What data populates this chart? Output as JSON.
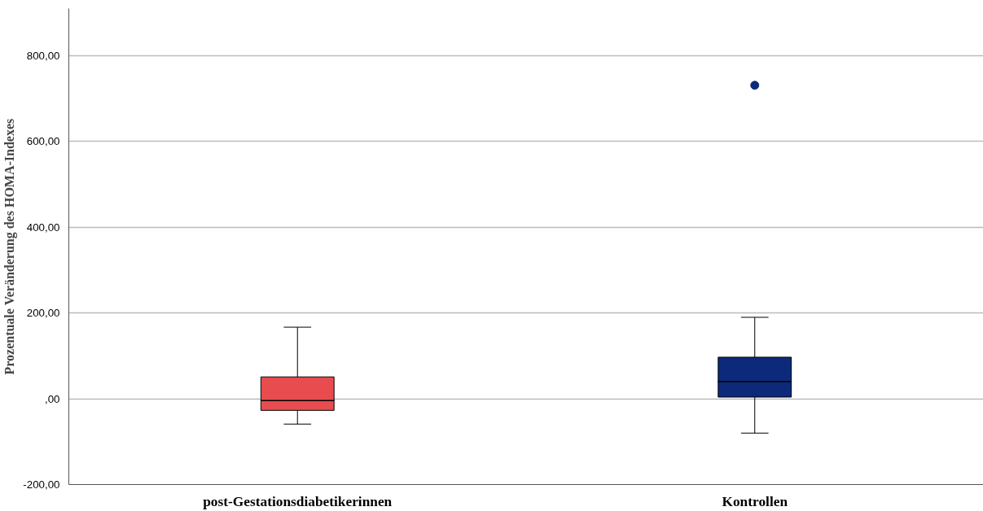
{
  "chart_data": {
    "type": "box",
    "ylabel": "Prozentuale Veränderung des HOMA-Indexes",
    "categories": [
      "post-Gestationsdiabetikerinnen",
      "Kontrollen"
    ],
    "boxes": [
      {
        "low": -59,
        "q1": -27,
        "median": -4,
        "q3": 51,
        "high": 167
      },
      {
        "low": -80,
        "q1": 4,
        "median": 40,
        "q3": 97,
        "high": 190,
        "outliers": [
          731
        ]
      }
    ],
    "colors": [
      "#e84c4f",
      "#0d2a7a"
    ],
    "ylim": [
      -200,
      910
    ],
    "yticks": [
      {
        "value": -200,
        "label": "-200,00"
      },
      {
        "value": 0,
        "label": ",00"
      },
      {
        "value": 200,
        "label": "200,00"
      },
      {
        "value": 400,
        "label": "400,00"
      },
      {
        "value": 600,
        "label": "600,00"
      },
      {
        "value": 800,
        "label": "800,00"
      }
    ],
    "grid": "y",
    "marker": "circle"
  }
}
